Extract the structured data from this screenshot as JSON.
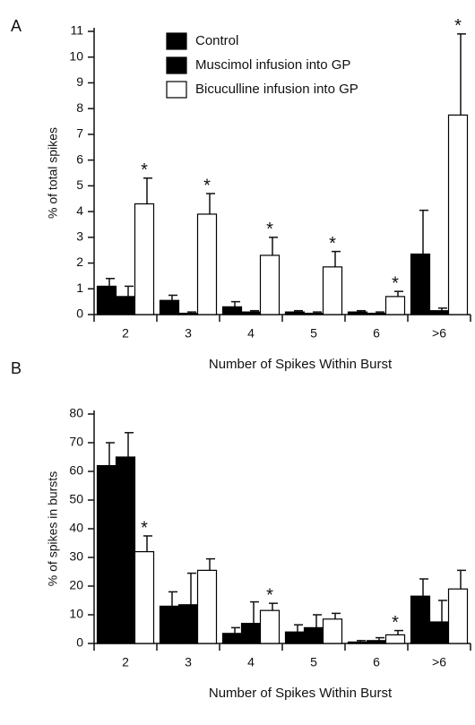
{
  "chart_data": [
    {
      "type": "bar",
      "panel": "A",
      "ylabel": "% of total spikes",
      "xlabel": "Number of Spikes Within Burst",
      "categories": [
        "2",
        "3",
        "4",
        "5",
        "6",
        ">6"
      ],
      "ylim": [
        0,
        11
      ],
      "yticks": [
        0,
        1,
        2,
        3,
        4,
        5,
        6,
        7,
        8,
        9,
        10,
        11
      ],
      "legend": "top",
      "series": [
        {
          "name": "Control",
          "color": "#000000",
          "values": [
            1.1,
            0.55,
            0.3,
            0.1,
            0.1,
            2.35
          ],
          "errors": [
            0.3,
            0.2,
            0.2,
            0.05,
            0.05,
            1.7
          ]
        },
        {
          "name": "Muscimol infusion into GP",
          "color": "#000000",
          "values": [
            0.7,
            0.05,
            0.1,
            0.05,
            0.05,
            0.15
          ],
          "errors": [
            0.4,
            0.05,
            0.05,
            0.05,
            0.05,
            0.1
          ]
        },
        {
          "name": "Bicuculline infusion into GP",
          "color": "#ffffff",
          "values": [
            4.3,
            3.9,
            2.3,
            1.85,
            0.7,
            7.75
          ],
          "errors": [
            1.0,
            0.8,
            0.7,
            0.6,
            0.2,
            3.15
          ],
          "significance": [
            "*",
            "*",
            "*",
            "*",
            "*",
            "*"
          ]
        }
      ]
    },
    {
      "type": "bar",
      "panel": "B",
      "ylabel": "% of spikes in bursts",
      "xlabel": "Number of Spikes Within Burst",
      "categories": [
        "2",
        "3",
        "4",
        "5",
        "6",
        ">6"
      ],
      "ylim": [
        0,
        80
      ],
      "yticks": [
        0,
        10,
        20,
        30,
        40,
        50,
        60,
        70,
        80
      ],
      "series": [
        {
          "color": "#000000",
          "values": [
            62,
            13,
            3.5,
            4,
            0.5,
            16.5
          ],
          "errors": [
            8,
            5,
            2,
            2.5,
            0.5,
            6
          ]
        },
        {
          "color": "#000000",
          "values": [
            65,
            13.5,
            7,
            5.5,
            1,
            7.5
          ],
          "errors": [
            8.5,
            11,
            7.5,
            4.5,
            1,
            7.5
          ]
        },
        {
          "color": "#ffffff",
          "values": [
            32,
            25.5,
            11.5,
            8.5,
            3,
            19
          ],
          "errors": [
            5.5,
            4,
            2.5,
            2,
            1.5,
            6.5
          ],
          "significance": [
            "*",
            null,
            "*",
            null,
            "*",
            null
          ]
        }
      ]
    }
  ]
}
